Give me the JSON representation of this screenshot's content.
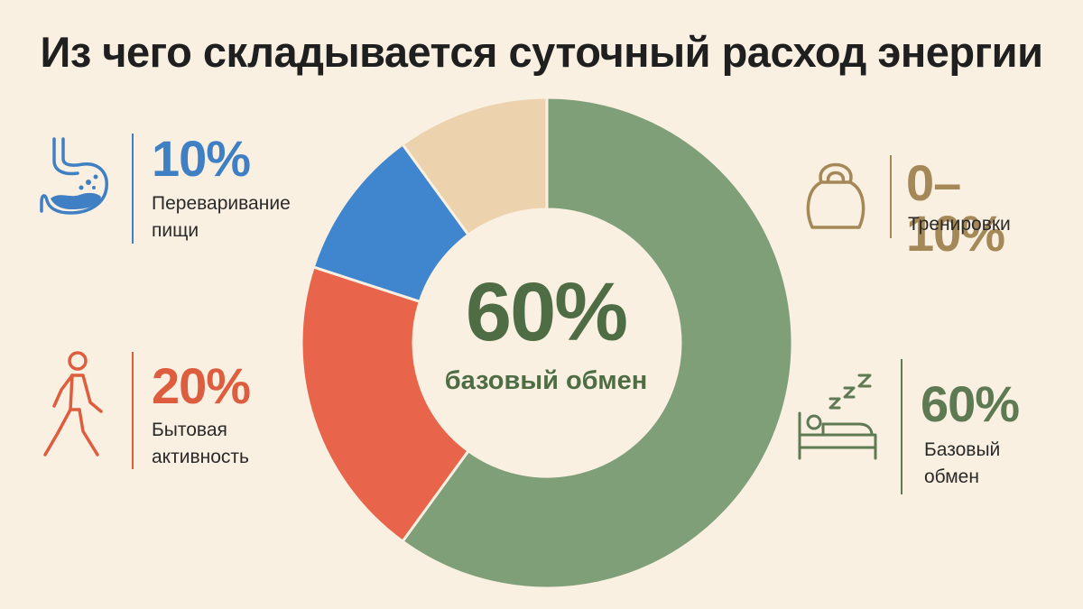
{
  "title": "Из чего складывается суточный расход энергии",
  "center": {
    "value": "60%",
    "label": "базовый обмен"
  },
  "colors": {
    "background": "#faf0e2",
    "green": "#7f9f78",
    "red": "#e8644a",
    "blue": "#3f86cf",
    "beige": "#ecd3ae",
    "green_text": "#5d7a52",
    "red_text": "#dd5d3f",
    "blue_text": "#3f7fc4",
    "brown_text": "#a58858"
  },
  "callouts": {
    "digestion": {
      "value": "10%",
      "label_line1": "Переваривание",
      "label_line2": "пищи",
      "icon": "stomach-icon"
    },
    "activity": {
      "value": "20%",
      "label_line1": "Бытовая",
      "label_line2": "активность",
      "icon": "walking-person-icon"
    },
    "training": {
      "value": "0–10%",
      "label_line1": "Тренировки",
      "icon": "kettlebell-icon"
    },
    "basal": {
      "value": "60%",
      "label_line1": "Базовый",
      "label_line2": "обмен",
      "icon": "sleeping-in-bed-icon"
    }
  },
  "chart_data": {
    "type": "pie",
    "title": "Из чего складывается суточный расход энергии",
    "donut": true,
    "center_label": "60% базовый обмен",
    "slices": [
      {
        "label": "Базовый обмен",
        "value": 60,
        "display": "60%",
        "color": "#7f9f78"
      },
      {
        "label": "Бытовая активность",
        "value": 20,
        "display": "20%",
        "color": "#e8644a"
      },
      {
        "label": "Переваривание пищи",
        "value": 10,
        "display": "10%",
        "color": "#3f86cf"
      },
      {
        "label": "Тренировки",
        "value": 10,
        "display": "0–10%",
        "color": "#ecd3ae"
      }
    ]
  }
}
